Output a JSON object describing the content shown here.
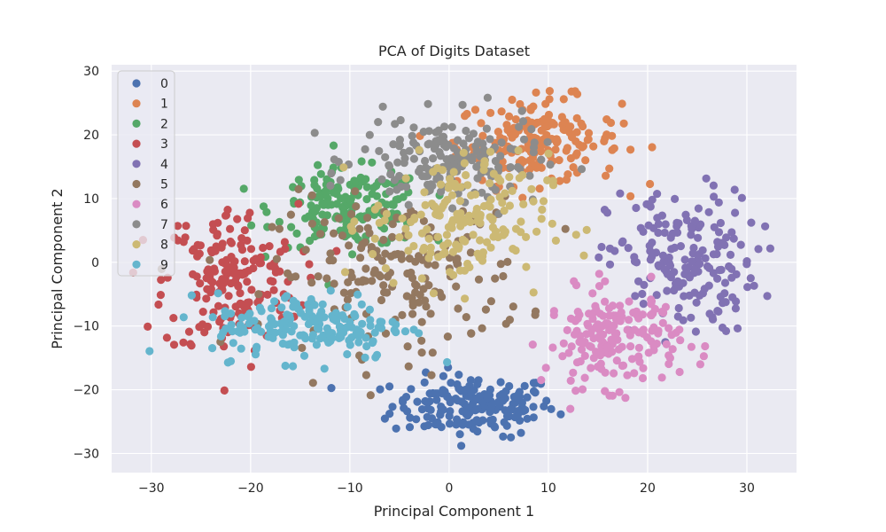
{
  "chart_data": {
    "type": "scatter",
    "title": "PCA of Digits Dataset",
    "xlabel": "Principal Component 1",
    "ylabel": "Principal Component 2",
    "xlim": [
      -34,
      35
    ],
    "ylim": [
      -33,
      31
    ],
    "xticks": [
      -30,
      -20,
      -10,
      0,
      10,
      20,
      30
    ],
    "yticks": [
      -30,
      -20,
      -10,
      0,
      10,
      20,
      30
    ],
    "grid": true,
    "legend_placement": "upper-left",
    "series": [
      {
        "name": "0",
        "color": "#4c72b0",
        "center": [
          2.5,
          -22.5
        ],
        "spread": [
          5.5,
          3.2
        ],
        "count": 178
      },
      {
        "name": "1",
        "color": "#dd8452",
        "center": [
          9.0,
          19.0
        ],
        "spread": [
          5.5,
          4.5
        ],
        "count": 182
      },
      {
        "name": "2",
        "color": "#55a868",
        "center": [
          -10.0,
          8.5
        ],
        "spread": [
          5.0,
          4.0
        ],
        "count": 177
      },
      {
        "name": "3",
        "color": "#c44e52",
        "center": [
          -22.0,
          -3.0
        ],
        "spread": [
          4.5,
          8.0
        ],
        "count": 183
      },
      {
        "name": "4",
        "color": "#8172b3",
        "center": [
          23.5,
          0.0
        ],
        "spread": [
          5.0,
          7.5
        ],
        "count": 181
      },
      {
        "name": "5",
        "color": "#937860",
        "center": [
          -5.0,
          -2.0
        ],
        "spread": [
          8.5,
          8.0
        ],
        "count": 182
      },
      {
        "name": "6",
        "color": "#da8bc3",
        "center": [
          16.5,
          -12.0
        ],
        "spread": [
          4.5,
          5.0
        ],
        "count": 181
      },
      {
        "name": "7",
        "color": "#8c8c8c",
        "center": [
          0.0,
          16.0
        ],
        "spread": [
          6.0,
          4.5
        ],
        "count": 179
      },
      {
        "name": "8",
        "color": "#ccb974",
        "center": [
          1.0,
          6.5
        ],
        "spread": [
          6.0,
          7.0
        ],
        "count": 174
      },
      {
        "name": "9",
        "color": "#64b5cd",
        "center": [
          -14.0,
          -10.0
        ],
        "spread": [
          6.5,
          3.5
        ],
        "count": 180
      }
    ]
  }
}
